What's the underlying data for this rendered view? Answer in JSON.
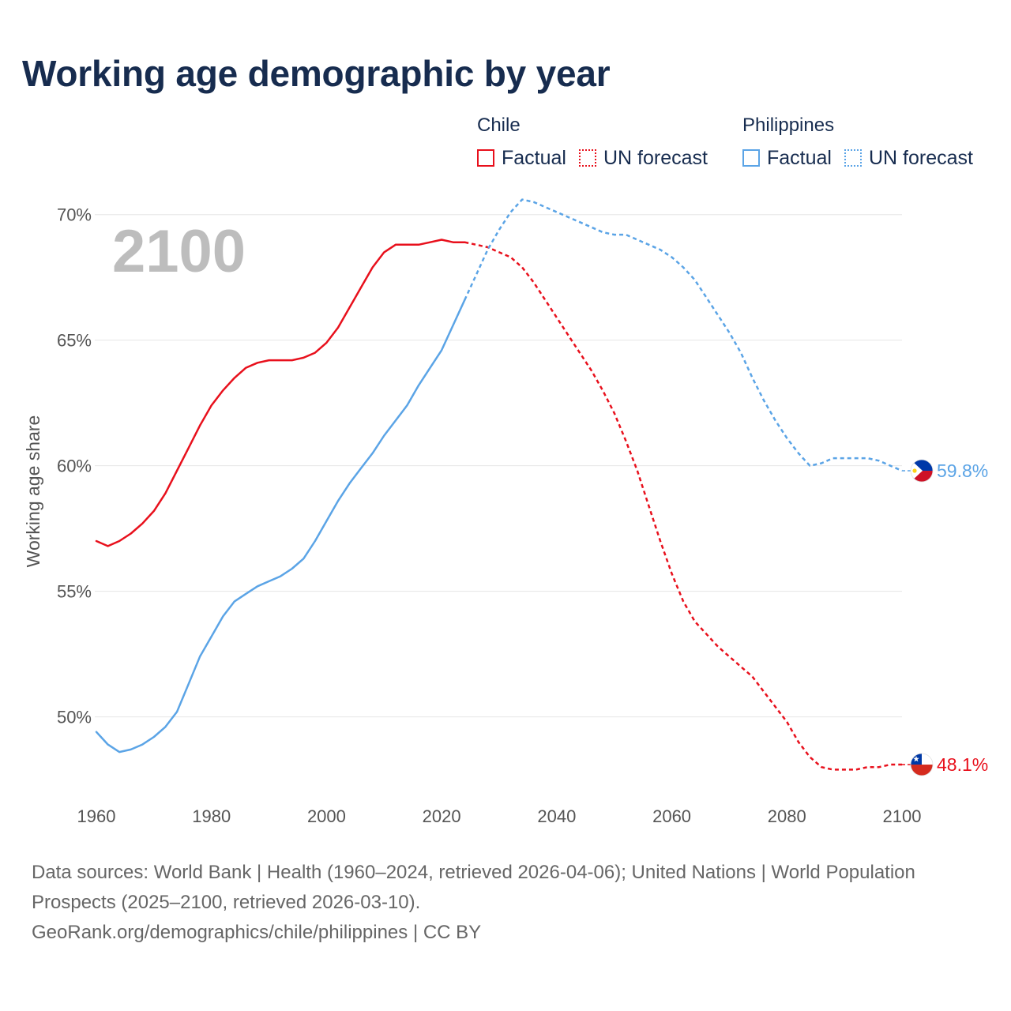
{
  "title": "Working age demographic by year",
  "legend": {
    "groups": [
      {
        "name": "Chile",
        "color": "#e8101c",
        "factual_label": "Factual",
        "forecast_label": "UN forecast"
      },
      {
        "name": "Philippines",
        "color": "#5ba4e6",
        "factual_label": "Factual",
        "forecast_label": "UN forecast"
      }
    ]
  },
  "year_display": "2100",
  "footer": {
    "sources": "Data sources: World Bank | Health (1960–2024, retrieved 2026-04-06); United Nations | World Population Prospects (2025–2100, retrieved 2026-03-10).",
    "attribution": "GeoRank.org/demographics/chile/philippines | CC BY"
  },
  "chart_data": {
    "type": "line",
    "title": "Working age demographic by year",
    "xlabel": "",
    "ylabel": "Working age share",
    "xlim": [
      1960,
      2100
    ],
    "ylim": [
      47,
      71.5
    ],
    "x_ticks": [
      1960,
      1980,
      2000,
      2020,
      2040,
      2060,
      2080,
      2100
    ],
    "y_ticks": [
      50,
      55,
      60,
      65,
      70
    ],
    "y_tick_labels": [
      "50%",
      "55%",
      "60%",
      "65%",
      "70%"
    ],
    "grid": true,
    "factual_end_year": 2024,
    "series": [
      {
        "name": "Chile",
        "color": "#e8101c",
        "end_label": "48.1%",
        "flag": "chile",
        "points": [
          [
            1960,
            57.0
          ],
          [
            1962,
            56.8
          ],
          [
            1964,
            57.0
          ],
          [
            1966,
            57.3
          ],
          [
            1968,
            57.7
          ],
          [
            1970,
            58.2
          ],
          [
            1972,
            58.9
          ],
          [
            1974,
            59.8
          ],
          [
            1976,
            60.7
          ],
          [
            1978,
            61.6
          ],
          [
            1980,
            62.4
          ],
          [
            1982,
            63.0
          ],
          [
            1984,
            63.5
          ],
          [
            1986,
            63.9
          ],
          [
            1988,
            64.1
          ],
          [
            1990,
            64.2
          ],
          [
            1992,
            64.2
          ],
          [
            1994,
            64.2
          ],
          [
            1996,
            64.3
          ],
          [
            1998,
            64.5
          ],
          [
            2000,
            64.9
          ],
          [
            2002,
            65.5
          ],
          [
            2004,
            66.3
          ],
          [
            2006,
            67.1
          ],
          [
            2008,
            67.9
          ],
          [
            2010,
            68.5
          ],
          [
            2012,
            68.8
          ],
          [
            2014,
            68.8
          ],
          [
            2016,
            68.8
          ],
          [
            2018,
            68.9
          ],
          [
            2020,
            69.0
          ],
          [
            2022,
            68.9
          ],
          [
            2024,
            68.9
          ],
          [
            2026,
            68.8
          ],
          [
            2028,
            68.7
          ],
          [
            2030,
            68.5
          ],
          [
            2032,
            68.3
          ],
          [
            2034,
            67.9
          ],
          [
            2036,
            67.3
          ],
          [
            2038,
            66.6
          ],
          [
            2040,
            65.9
          ],
          [
            2042,
            65.2
          ],
          [
            2044,
            64.5
          ],
          [
            2046,
            63.8
          ],
          [
            2048,
            63.0
          ],
          [
            2050,
            62.1
          ],
          [
            2052,
            61.0
          ],
          [
            2054,
            59.8
          ],
          [
            2056,
            58.4
          ],
          [
            2058,
            57.0
          ],
          [
            2060,
            55.7
          ],
          [
            2062,
            54.6
          ],
          [
            2064,
            53.8
          ],
          [
            2066,
            53.3
          ],
          [
            2068,
            52.8
          ],
          [
            2070,
            52.4
          ],
          [
            2072,
            52.0
          ],
          [
            2074,
            51.6
          ],
          [
            2076,
            51.0
          ],
          [
            2078,
            50.4
          ],
          [
            2080,
            49.8
          ],
          [
            2082,
            49.0
          ],
          [
            2084,
            48.4
          ],
          [
            2086,
            48.0
          ],
          [
            2088,
            47.9
          ],
          [
            2090,
            47.9
          ],
          [
            2092,
            47.9
          ],
          [
            2094,
            48.0
          ],
          [
            2096,
            48.0
          ],
          [
            2098,
            48.1
          ],
          [
            2100,
            48.1
          ]
        ]
      },
      {
        "name": "Philippines",
        "color": "#5ba4e6",
        "end_label": "59.8%",
        "flag": "philippines",
        "points": [
          [
            1960,
            49.4
          ],
          [
            1962,
            48.9
          ],
          [
            1964,
            48.6
          ],
          [
            1966,
            48.7
          ],
          [
            1968,
            48.9
          ],
          [
            1970,
            49.2
          ],
          [
            1972,
            49.6
          ],
          [
            1974,
            50.2
          ],
          [
            1976,
            51.3
          ],
          [
            1978,
            52.4
          ],
          [
            1980,
            53.2
          ],
          [
            1982,
            54.0
          ],
          [
            1984,
            54.6
          ],
          [
            1986,
            54.9
          ],
          [
            1988,
            55.2
          ],
          [
            1990,
            55.4
          ],
          [
            1992,
            55.6
          ],
          [
            1994,
            55.9
          ],
          [
            1996,
            56.3
          ],
          [
            1998,
            57.0
          ],
          [
            2000,
            57.8
          ],
          [
            2002,
            58.6
          ],
          [
            2004,
            59.3
          ],
          [
            2006,
            59.9
          ],
          [
            2008,
            60.5
          ],
          [
            2010,
            61.2
          ],
          [
            2012,
            61.8
          ],
          [
            2014,
            62.4
          ],
          [
            2016,
            63.2
          ],
          [
            2018,
            63.9
          ],
          [
            2020,
            64.6
          ],
          [
            2022,
            65.6
          ],
          [
            2024,
            66.6
          ],
          [
            2026,
            67.6
          ],
          [
            2028,
            68.6
          ],
          [
            2030,
            69.4
          ],
          [
            2032,
            70.1
          ],
          [
            2034,
            70.6
          ],
          [
            2036,
            70.5
          ],
          [
            2038,
            70.3
          ],
          [
            2040,
            70.1
          ],
          [
            2042,
            69.9
          ],
          [
            2044,
            69.7
          ],
          [
            2046,
            69.5
          ],
          [
            2048,
            69.3
          ],
          [
            2050,
            69.2
          ],
          [
            2052,
            69.2
          ],
          [
            2054,
            69.0
          ],
          [
            2056,
            68.8
          ],
          [
            2058,
            68.6
          ],
          [
            2060,
            68.3
          ],
          [
            2062,
            67.9
          ],
          [
            2064,
            67.4
          ],
          [
            2066,
            66.7
          ],
          [
            2068,
            66.0
          ],
          [
            2070,
            65.3
          ],
          [
            2072,
            64.5
          ],
          [
            2074,
            63.5
          ],
          [
            2076,
            62.6
          ],
          [
            2078,
            61.8
          ],
          [
            2080,
            61.1
          ],
          [
            2082,
            60.5
          ],
          [
            2084,
            60.0
          ],
          [
            2086,
            60.1
          ],
          [
            2088,
            60.3
          ],
          [
            2090,
            60.3
          ],
          [
            2092,
            60.3
          ],
          [
            2094,
            60.3
          ],
          [
            2096,
            60.2
          ],
          [
            2098,
            60.0
          ],
          [
            2100,
            59.8
          ]
        ]
      }
    ]
  }
}
